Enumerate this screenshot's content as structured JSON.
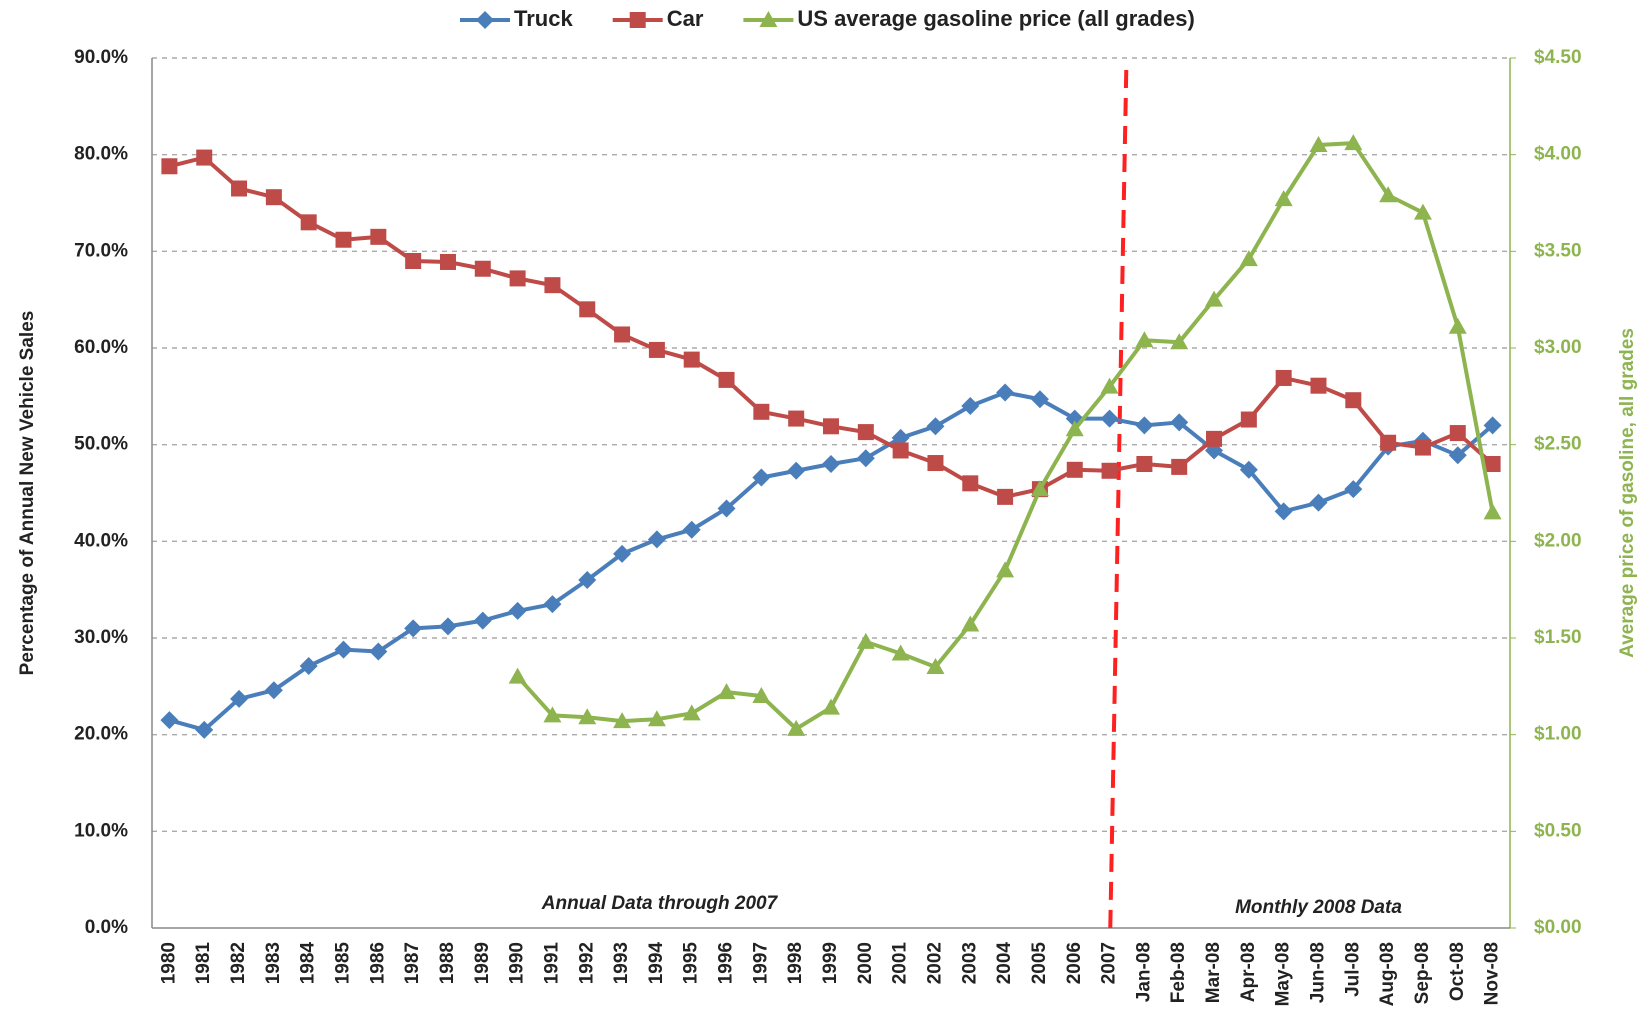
{
  "chart_data": {
    "type": "line",
    "categories": [
      "1980",
      "1981",
      "1982",
      "1983",
      "1984",
      "1985",
      "1986",
      "1987",
      "1988",
      "1989",
      "1990",
      "1991",
      "1992",
      "1993",
      "1994",
      "1995",
      "1996",
      "1997",
      "1998",
      "1999",
      "2000",
      "2001",
      "2002",
      "2003",
      "2004",
      "2005",
      "2006",
      "2007",
      "Jan-08",
      "Feb-08",
      "Mar-08",
      "Apr-08",
      "May-08",
      "Jun-08",
      "Jul-08",
      "Aug-08",
      "Sep-08",
      "Oct-08",
      "Nov-08"
    ],
    "series": [
      {
        "name": "Truck",
        "color": "#4a7ebb",
        "marker": "diamond",
        "values": [
          21.5,
          20.5,
          23.7,
          24.6,
          27.1,
          28.8,
          28.6,
          31.0,
          31.2,
          31.8,
          32.8,
          33.5,
          36.0,
          38.7,
          40.2,
          41.2,
          43.4,
          46.6,
          47.3,
          48.0,
          48.6,
          50.7,
          51.9,
          54.0,
          55.4,
          54.7,
          52.7,
          52.7,
          52.0,
          52.3,
          49.4,
          47.4,
          43.1,
          44.0,
          45.4,
          49.8,
          50.4,
          48.9,
          52.0
        ]
      },
      {
        "name": "Car",
        "color": "#be4b48",
        "marker": "square",
        "values": [
          78.8,
          79.7,
          76.5,
          75.6,
          73.0,
          71.2,
          71.5,
          69.0,
          68.9,
          68.2,
          67.2,
          66.5,
          64.0,
          61.4,
          59.8,
          58.8,
          56.7,
          53.4,
          52.7,
          51.9,
          51.3,
          49.4,
          48.1,
          46.0,
          44.6,
          45.4,
          47.4,
          47.3,
          48.0,
          47.7,
          50.6,
          52.6,
          56.9,
          56.1,
          54.6,
          50.2,
          49.7,
          51.2,
          48.0
        ]
      },
      {
        "name": "US average gasoline price (all grades)",
        "color": "#8db44e",
        "marker": "triangle",
        "axis": "y2",
        "values": [
          null,
          null,
          null,
          null,
          null,
          null,
          null,
          null,
          null,
          null,
          1.3,
          1.1,
          1.09,
          1.07,
          1.08,
          1.11,
          1.22,
          1.2,
          1.03,
          1.14,
          1.48,
          1.42,
          1.35,
          1.57,
          1.85,
          2.27,
          2.58,
          2.8,
          3.04,
          3.03,
          3.25,
          3.46,
          3.77,
          4.05,
          4.06,
          3.79,
          3.7,
          3.11,
          2.15
        ]
      }
    ],
    "y_label": "Percentage of Annual New Vehicle Sales",
    "y2_label": "Average price of gasoline, all grades",
    "ylim": [
      0,
      90
    ],
    "yticks": [
      {
        "value": 0,
        "label": "0.0%"
      },
      {
        "value": 10,
        "label": "10.0%"
      },
      {
        "value": 20,
        "label": "20.0%"
      },
      {
        "value": 30,
        "label": "30.0%"
      },
      {
        "value": 40,
        "label": "40.0%"
      },
      {
        "value": 50,
        "label": "50.0%"
      },
      {
        "value": 60,
        "label": "60.0%"
      },
      {
        "value": 70,
        "label": "70.0%"
      },
      {
        "value": 80,
        "label": "80.0%"
      },
      {
        "value": 90,
        "label": "90.0%"
      }
    ],
    "y2lim": [
      0,
      4.5
    ],
    "y2ticks": [
      {
        "value": 0,
        "label": "$0.00"
      },
      {
        "value": 0.5,
        "label": "$0.50"
      },
      {
        "value": 1,
        "label": "$1.00"
      },
      {
        "value": 1.5,
        "label": "$1.50"
      },
      {
        "value": 2,
        "label": "$2.00"
      },
      {
        "value": 2.5,
        "label": "$2.50"
      },
      {
        "value": 3,
        "label": "$3.00"
      },
      {
        "value": 3.5,
        "label": "$3.50"
      },
      {
        "value": 4,
        "label": "$4.00"
      },
      {
        "value": 4.5,
        "label": "$4.50"
      }
    ],
    "annotations": [
      "Annual Data through 2007",
      "Monthly 2008 Data"
    ],
    "grid": true,
    "legend": "top"
  }
}
